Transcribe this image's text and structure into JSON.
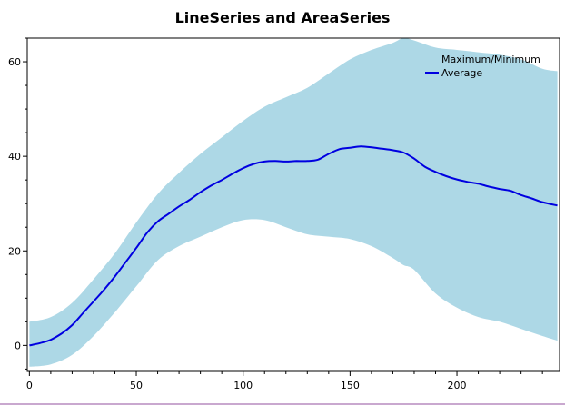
{
  "chart_data": {
    "type": "area",
    "title": "LineSeries and AreaSeries",
    "xlabel": "",
    "ylabel": "",
    "xlim": [
      -1,
      248
    ],
    "ylim": [
      -5.5,
      65
    ],
    "xticks": [
      0,
      50,
      100,
      150,
      200
    ],
    "yticks": [
      0,
      20,
      40,
      60
    ],
    "legend": {
      "position": "top-right",
      "entries": [
        "Maximum/Minimum",
        "Average"
      ]
    },
    "series": [
      {
        "name": "Maximum/Minimum",
        "color": "#add8e6",
        "x": [
          0,
          10,
          20,
          30,
          40,
          50,
          60,
          70,
          80,
          90,
          100,
          110,
          120,
          130,
          140,
          150,
          160,
          170,
          175,
          180,
          190,
          200,
          210,
          220,
          230,
          240,
          247
        ],
        "max": [
          5,
          6,
          9,
          14,
          19.5,
          26,
          32,
          36.5,
          40.5,
          44,
          47.5,
          50.5,
          52.5,
          54.5,
          57.5,
          60.5,
          62.5,
          64,
          65,
          64.5,
          63,
          62.5,
          62,
          61.5,
          60.5,
          58.5,
          58
        ],
        "min": [
          -4.5,
          -4,
          -2,
          2,
          7,
          12.5,
          18,
          21,
          23,
          25,
          26.5,
          26.5,
          25,
          23.5,
          23,
          22.5,
          21,
          18.5,
          17,
          16,
          11,
          8,
          6,
          5,
          3.5,
          2,
          1
        ]
      },
      {
        "name": "Average",
        "color": "#0000e0",
        "x": [
          0,
          5,
          10,
          15,
          20,
          25,
          30,
          35,
          40,
          45,
          50,
          55,
          60,
          65,
          70,
          75,
          80,
          85,
          90,
          95,
          100,
          105,
          110,
          115,
          120,
          125,
          130,
          135,
          140,
          145,
          150,
          155,
          160,
          165,
          170,
          175,
          180,
          185,
          190,
          195,
          200,
          205,
          210,
          215,
          220,
          225,
          230,
          235,
          240,
          247
        ],
        "values": [
          0,
          0.5,
          1.2,
          2.5,
          4.3,
          6.8,
          9.3,
          11.8,
          14.6,
          17.6,
          20.6,
          23.8,
          26.2,
          27.8,
          29.4,
          30.8,
          32.4,
          33.8,
          35,
          36.3,
          37.5,
          38.4,
          38.9,
          39,
          38.9,
          39,
          39,
          39.3,
          40.5,
          41.5,
          41.8,
          42.1,
          41.9,
          41.6,
          41.3,
          40.8,
          39.5,
          37.8,
          36.7,
          35.8,
          35.1,
          34.6,
          34.2,
          33.6,
          33.1,
          32.7,
          31.8,
          31.1,
          30.3,
          29.6
        ]
      }
    ]
  }
}
